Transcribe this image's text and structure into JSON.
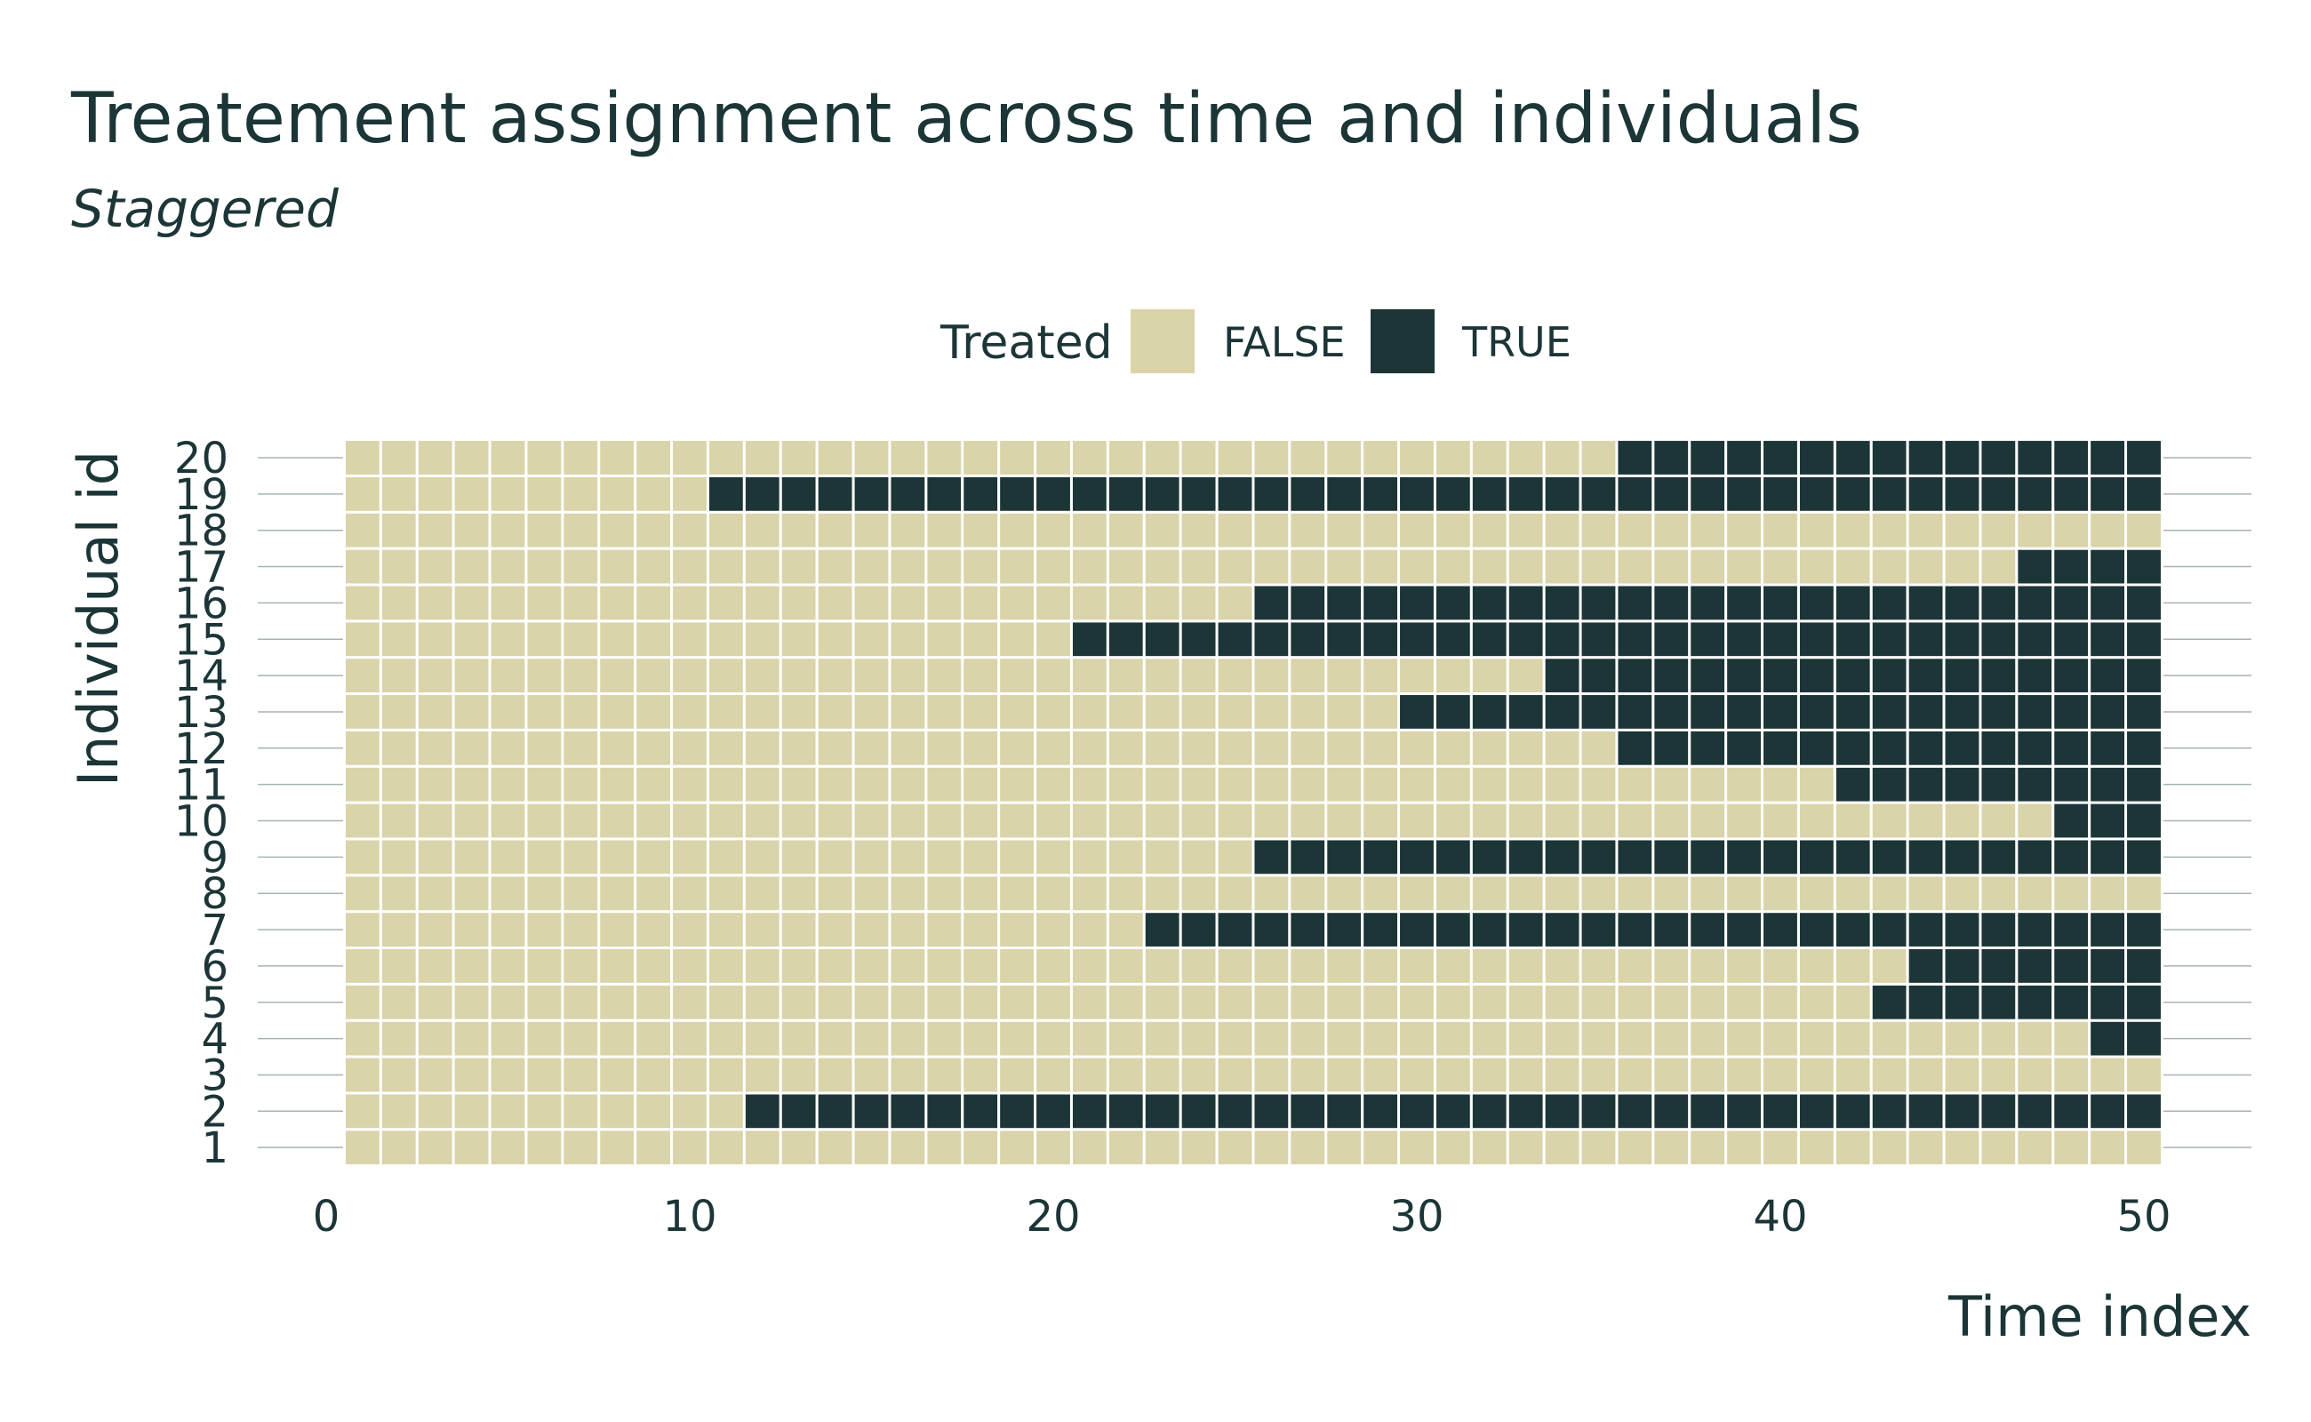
{
  "chart_data": {
    "type": "heatmap",
    "title": "Treatement assignment across time and individuals",
    "subtitle": "Staggered",
    "xlabel": "Time index",
    "ylabel": "Individual id",
    "x": [
      1,
      2,
      3,
      4,
      5,
      6,
      7,
      8,
      9,
      10,
      11,
      12,
      13,
      14,
      15,
      16,
      17,
      18,
      19,
      20,
      21,
      22,
      23,
      24,
      25,
      26,
      27,
      28,
      29,
      30,
      31,
      32,
      33,
      34,
      35,
      36,
      37,
      38,
      39,
      40,
      41,
      42,
      43,
      44,
      45,
      46,
      47,
      48,
      49,
      50
    ],
    "y": [
      1,
      2,
      3,
      4,
      5,
      6,
      7,
      8,
      9,
      10,
      11,
      12,
      13,
      14,
      15,
      16,
      17,
      18,
      19,
      20
    ],
    "xlim": [
      0,
      50
    ],
    "xticks": [
      0,
      10,
      20,
      30,
      40,
      50
    ],
    "yticks": [
      1,
      2,
      3,
      4,
      5,
      6,
      7,
      8,
      9,
      10,
      11,
      12,
      13,
      14,
      15,
      16,
      17,
      18,
      19,
      20
    ],
    "grid": "horizontal",
    "legend": {
      "title": "Treated",
      "placement": "top",
      "entries": [
        {
          "label": "FALSE",
          "color": "#d9d4a9"
        },
        {
          "label": "TRUE",
          "color": "#1c3537"
        }
      ]
    },
    "treatment_start_by_id": {
      "1": null,
      "2": 12,
      "3": null,
      "4": 49,
      "5": 43,
      "6": 44,
      "7": 23,
      "8": null,
      "9": 26,
      "10": 48,
      "11": 42,
      "12": 36,
      "13": 30,
      "14": 34,
      "15": 21,
      "16": 26,
      "17": 47,
      "18": null,
      "19": 11,
      "20": 36
    },
    "treated_through_end": true
  },
  "colors": {
    "false_fill": "#d9d4a9",
    "true_fill": "#1c3537",
    "text": "#1c3537",
    "grid": "#a7b4b4",
    "tile_border": "#ffffff"
  }
}
